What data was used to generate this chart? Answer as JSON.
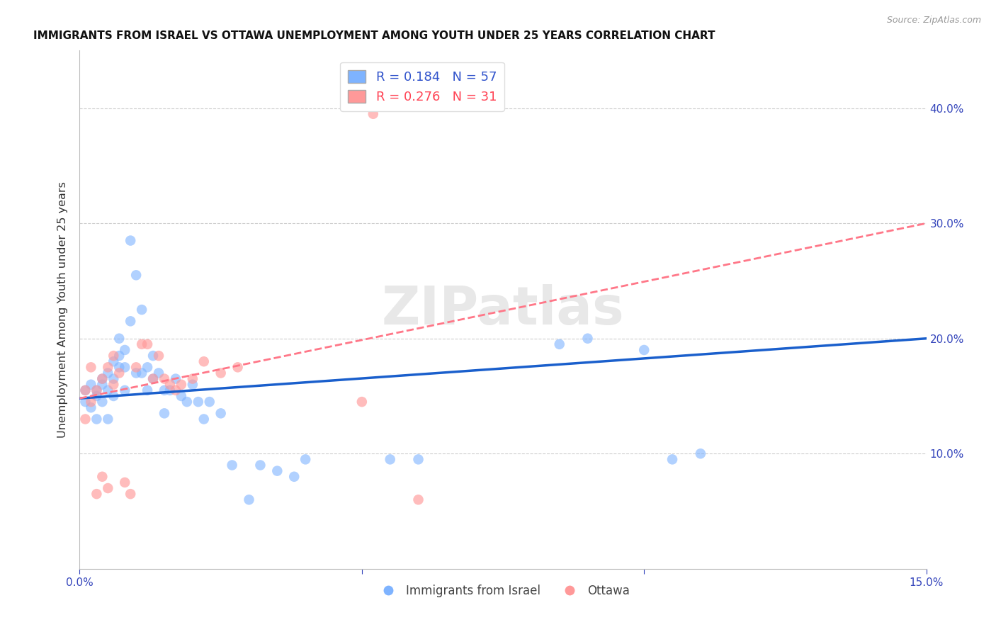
{
  "title": "IMMIGRANTS FROM ISRAEL VS OTTAWA UNEMPLOYMENT AMONG YOUTH UNDER 25 YEARS CORRELATION CHART",
  "source": "Source: ZipAtlas.com",
  "ylabel": "Unemployment Among Youth under 25 years",
  "xlim": [
    0.0,
    0.15
  ],
  "ylim": [
    0.0,
    0.45
  ],
  "xtick_labels": [
    "0.0%",
    "",
    "",
    "15.0%"
  ],
  "ytick_labels_right": [
    "10.0%",
    "20.0%",
    "30.0%",
    "40.0%"
  ],
  "yticks_right": [
    0.1,
    0.2,
    0.3,
    0.4
  ],
  "legend1_r": "0.184",
  "legend1_n": "57",
  "legend2_r": "0.276",
  "legend2_n": "31",
  "blue_color": "#7EB3FF",
  "pink_color": "#FF9999",
  "trend_blue": "#1A5FCC",
  "trend_pink": "#FF7788",
  "watermark": "ZIPatlas",
  "blue_trend_y0": 0.148,
  "blue_trend_y1": 0.2,
  "pink_trend_y0": 0.148,
  "pink_trend_y1": 0.3,
  "blue_scatter_x": [
    0.001,
    0.001,
    0.002,
    0.002,
    0.003,
    0.003,
    0.003,
    0.004,
    0.004,
    0.004,
    0.005,
    0.005,
    0.005,
    0.006,
    0.006,
    0.006,
    0.007,
    0.007,
    0.007,
    0.008,
    0.008,
    0.008,
    0.009,
    0.009,
    0.01,
    0.01,
    0.011,
    0.011,
    0.012,
    0.012,
    0.013,
    0.013,
    0.014,
    0.015,
    0.015,
    0.016,
    0.017,
    0.018,
    0.019,
    0.02,
    0.021,
    0.022,
    0.023,
    0.025,
    0.027,
    0.03,
    0.032,
    0.035,
    0.038,
    0.04,
    0.055,
    0.06,
    0.085,
    0.09,
    0.1,
    0.105,
    0.11
  ],
  "blue_scatter_y": [
    0.155,
    0.145,
    0.14,
    0.16,
    0.15,
    0.155,
    0.13,
    0.145,
    0.16,
    0.165,
    0.13,
    0.155,
    0.17,
    0.15,
    0.165,
    0.18,
    0.2,
    0.175,
    0.185,
    0.155,
    0.175,
    0.19,
    0.285,
    0.215,
    0.17,
    0.255,
    0.225,
    0.17,
    0.175,
    0.155,
    0.165,
    0.185,
    0.17,
    0.155,
    0.135,
    0.155,
    0.165,
    0.15,
    0.145,
    0.16,
    0.145,
    0.13,
    0.145,
    0.135,
    0.09,
    0.06,
    0.09,
    0.085,
    0.08,
    0.095,
    0.095,
    0.095,
    0.195,
    0.2,
    0.19,
    0.095,
    0.1
  ],
  "pink_scatter_x": [
    0.001,
    0.001,
    0.002,
    0.002,
    0.003,
    0.003,
    0.004,
    0.004,
    0.005,
    0.005,
    0.006,
    0.006,
    0.007,
    0.008,
    0.009,
    0.01,
    0.011,
    0.012,
    0.013,
    0.014,
    0.015,
    0.016,
    0.017,
    0.018,
    0.02,
    0.022,
    0.025,
    0.028,
    0.05,
    0.052,
    0.06
  ],
  "pink_scatter_y": [
    0.13,
    0.155,
    0.145,
    0.175,
    0.155,
    0.065,
    0.165,
    0.08,
    0.07,
    0.175,
    0.16,
    0.185,
    0.17,
    0.075,
    0.065,
    0.175,
    0.195,
    0.195,
    0.165,
    0.185,
    0.165,
    0.16,
    0.155,
    0.16,
    0.165,
    0.18,
    0.17,
    0.175,
    0.145,
    0.395,
    0.06
  ]
}
